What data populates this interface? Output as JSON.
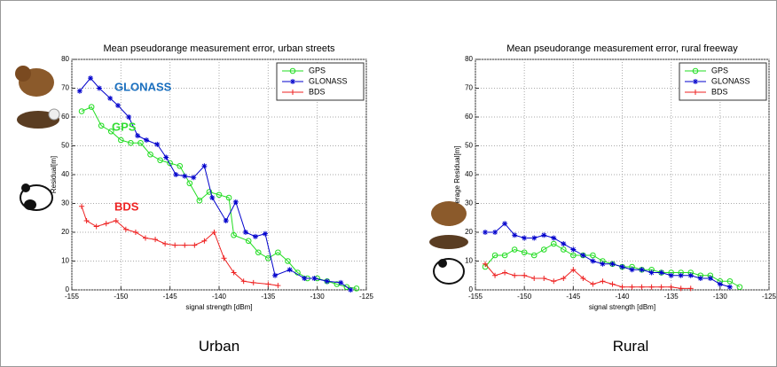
{
  "chart_data": [
    {
      "type": "line",
      "title": "Mean pseudorange measurement error, urban streets",
      "x_label": "signal strength [dBm]",
      "y_label": "Residual[m]",
      "xlim": [
        -155,
        -125
      ],
      "xticks": [
        -155,
        -150,
        -145,
        -140,
        -135,
        -130,
        -125
      ],
      "ylim": [
        0,
        80
      ],
      "yticks": [
        0,
        10,
        20,
        30,
        40,
        50,
        60,
        70,
        80
      ],
      "grid": true,
      "legend": "top-right",
      "series": [
        {
          "name": "GPS",
          "color": "#22dd22",
          "marker": "o",
          "x": [
            -154,
            -153,
            -152,
            -151,
            -150,
            -149,
            -148,
            -147,
            -146,
            -145,
            -144,
            -143,
            -142,
            -141,
            -140,
            -139,
            -138.5,
            -137,
            -136,
            -135,
            -134,
            -133,
            -132,
            -131,
            -130,
            -129,
            -128,
            -127,
            -126
          ],
          "values": [
            62,
            63.5,
            57,
            55,
            52,
            51,
            51,
            47,
            45,
            44,
            43,
            37,
            31,
            34,
            33,
            32,
            19,
            17,
            13,
            11,
            13,
            10,
            6,
            4,
            4,
            3,
            2,
            1,
            0.5
          ]
        },
        {
          "name": "GLONASS",
          "color": "#0000cc",
          "marker": "*",
          "x": [
            -154.2,
            -153.1,
            -152.2,
            -151.1,
            -150.3,
            -149.2,
            -148.3,
            -147.4,
            -146.3,
            -145.4,
            -144.4,
            -143.5,
            -142.6,
            -141.5,
            -140.7,
            -139.3,
            -138.3,
            -137.3,
            -136.3,
            -135.3,
            -134.3,
            -132.8,
            -131.3,
            -130.3,
            -129,
            -127.6,
            -126.6
          ],
          "values": [
            69,
            73.5,
            70,
            66.5,
            64,
            60,
            53.5,
            52,
            50.5,
            46,
            40,
            39.5,
            39,
            43,
            32,
            24,
            30.5,
            20,
            18.5,
            19.5,
            5,
            7,
            4,
            4,
            3,
            2.5,
            0
          ]
        },
        {
          "name": "BDS",
          "color": "#ee2222",
          "marker": "+",
          "x": [
            -154,
            -153.5,
            -152.5,
            -151.5,
            -150.5,
            -149.5,
            -148.5,
            -147.5,
            -146.5,
            -145.5,
            -144.5,
            -143.5,
            -142.5,
            -141.5,
            -140.5,
            -139.5,
            -138.5,
            -137.5,
            -136.5,
            -135,
            -134
          ],
          "values": [
            29,
            24,
            22,
            23,
            24,
            21,
            20,
            18,
            17.5,
            16,
            15.5,
            15.5,
            15.5,
            17,
            20,
            11,
            6,
            3,
            2.5,
            2,
            1.5
          ]
        }
      ],
      "annotations": [
        {
          "text": "GLONASS",
          "color": "#1a6fbf"
        },
        {
          "text": "GPS",
          "color": "#33dd33"
        },
        {
          "text": "BDS",
          "color": "#ee2222"
        }
      ],
      "caption": "Urban"
    },
    {
      "type": "line",
      "title": "Mean pseudorange measurement error, rural freeway",
      "x_label": "signal strength [dBm]",
      "y_label": "erage Residual[m]",
      "xlim": [
        -155,
        -125
      ],
      "xticks": [
        -155,
        -150,
        -145,
        -140,
        -135,
        -130,
        -125
      ],
      "ylim": [
        0,
        80
      ],
      "yticks": [
        0,
        10,
        20,
        30,
        40,
        50,
        60,
        70,
        80
      ],
      "grid": true,
      "legend": "top-right",
      "series": [
        {
          "name": "GPS",
          "color": "#22dd22",
          "marker": "o",
          "x": [
            -154,
            -153,
            -152,
            -151,
            -150,
            -149,
            -148,
            -147,
            -146,
            -145,
            -144,
            -143,
            -142,
            -141,
            -140,
            -139,
            -138,
            -137,
            -136,
            -135,
            -134,
            -133,
            -132,
            -131,
            -130,
            -129,
            -128
          ],
          "values": [
            8,
            12,
            12,
            14,
            13,
            12,
            14,
            16,
            14,
            12,
            12,
            12,
            10,
            9,
            8,
            8,
            7,
            7,
            6,
            6,
            6,
            6,
            5,
            5,
            3,
            3,
            1
          ]
        },
        {
          "name": "GLONASS",
          "color": "#0000cc",
          "marker": "*",
          "x": [
            -154,
            -153,
            -152,
            -151,
            -150,
            -149,
            -148,
            -147,
            -146,
            -145,
            -144,
            -143,
            -142,
            -141,
            -140,
            -139,
            -138,
            -137,
            -136,
            -135,
            -134,
            -133,
            -132,
            -131,
            -130,
            -129
          ],
          "values": [
            20,
            20,
            23,
            19,
            18,
            18,
            19,
            18,
            16,
            14,
            12,
            10,
            9,
            9,
            8,
            7,
            7,
            6,
            6,
            5,
            5,
            5,
            4,
            4,
            2,
            1
          ]
        },
        {
          "name": "BDS",
          "color": "#ee2222",
          "marker": "+",
          "x": [
            -154,
            -153,
            -152,
            -151,
            -150,
            -149,
            -148,
            -147,
            -146,
            -145,
            -144,
            -143,
            -142,
            -141,
            -140,
            -139,
            -138,
            -137,
            -136,
            -135,
            -134,
            -133
          ],
          "values": [
            9,
            5,
            6,
            5,
            5,
            4,
            4,
            3,
            4,
            7,
            4,
            2,
            3,
            2,
            1,
            1,
            1,
            1,
            1,
            1,
            0.5,
            0.5
          ]
        }
      ],
      "caption": "Rural"
    }
  ]
}
